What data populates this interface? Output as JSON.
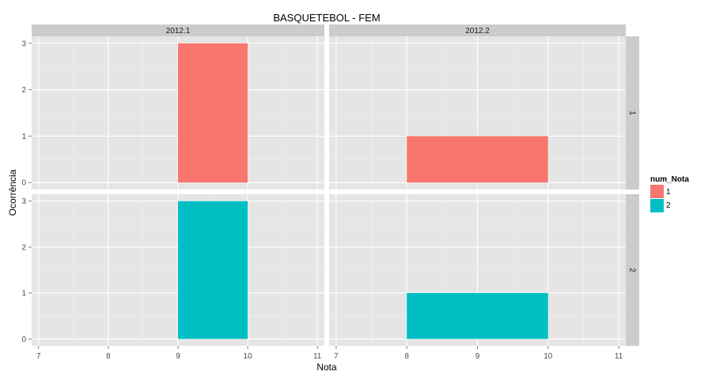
{
  "chart_data": {
    "type": "bar",
    "title": "BASQUETEBOL - FEM",
    "xlabel": "Nota",
    "ylabel": "Ocorrência",
    "grid": true,
    "legend_position": "right",
    "col_facets": [
      "2012.1",
      "2012.2"
    ],
    "row_facets": [
      "1",
      "2"
    ],
    "ylim": [
      0,
      3
    ],
    "y_ticks": [
      "0",
      "1",
      "2",
      "3"
    ],
    "xlim_by_col": [
      [
        6.9,
        11.1
      ],
      [
        6.9,
        11.1
      ]
    ],
    "x_ticks_by_col": [
      [
        "7",
        "8",
        "9",
        "10",
        "11"
      ],
      [
        "7",
        "8",
        "9",
        "10",
        "11"
      ]
    ],
    "legend": {
      "title": "num_Nota",
      "items": [
        {
          "label": "1",
          "color": "#F8766D"
        },
        {
          "label": "2",
          "color": "#00BFC4"
        }
      ]
    },
    "panels": [
      {
        "col": 0,
        "row": 0,
        "fill": "#F8766D",
        "bars": [
          {
            "x_start": 9,
            "x_end": 10,
            "value": 3
          }
        ]
      },
      {
        "col": 1,
        "row": 0,
        "fill": "#F8766D",
        "bars": [
          {
            "x_start": 8,
            "x_end": 10,
            "value": 1
          }
        ]
      },
      {
        "col": 0,
        "row": 1,
        "fill": "#00BFC4",
        "bars": [
          {
            "x_start": 9,
            "x_end": 10,
            "value": 3
          }
        ]
      },
      {
        "col": 1,
        "row": 1,
        "fill": "#00BFC4",
        "bars": [
          {
            "x_start": 8,
            "x_end": 10,
            "value": 1
          }
        ]
      }
    ]
  }
}
